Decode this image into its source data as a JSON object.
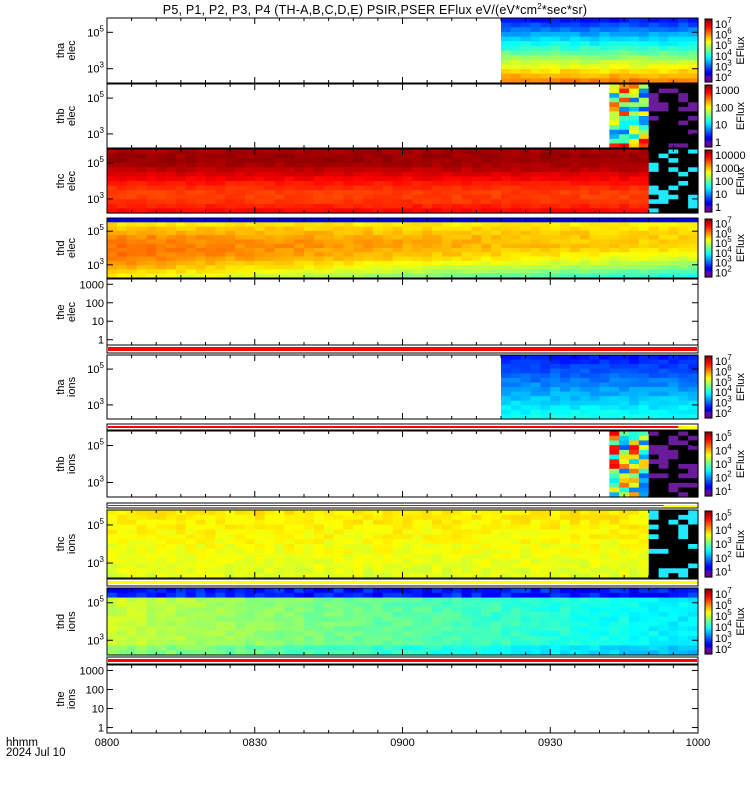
{
  "title": {
    "pre": "P5, P1, P2, P3, P4 (TH-A,B,C,D,E) PSIR,PSER EFlux eV/(eV*cm",
    "sup": "2",
    "post": "*sec*sr)"
  },
  "footer": {
    "label1": "hhmm",
    "label2": "2024 Jul 10"
  },
  "chart_data": {
    "type": "heatmap",
    "title": "P5, P1, P2, P3, P4 (TH-A,B,C,D,E) PSIR,PSER EFlux eV/(eV*cm2*sec*sr)",
    "x_ticks": [
      "0800",
      "0830",
      "0900",
      "0930",
      "1000"
    ],
    "x_range": [
      "08:00",
      "10:00"
    ],
    "panels": [
      {
        "ylabel": [
          "tha",
          "elec"
        ],
        "yticks": [
          "10^5",
          "10^3"
        ],
        "y_log": true,
        "data_start": "09:20",
        "data_end": "10:00",
        "kind": "tha_e",
        "colorbar": {
          "label": "EFlux",
          "ticks": [
            "10^7",
            "10^6",
            "10^5",
            "10^4",
            "10^3",
            "10^2"
          ]
        }
      },
      {
        "ylabel": [
          "thb",
          "elec"
        ],
        "yticks": [
          "10^5",
          "10^3"
        ],
        "y_log": true,
        "data_start": "09:41",
        "data_end": "09:50",
        "kind": "thb_e",
        "colorbar": {
          "label": "EFlux",
          "ticks": [
            "1000",
            "100",
            "10",
            "1"
          ]
        }
      },
      {
        "ylabel": [
          "thc",
          "elec"
        ],
        "yticks": [
          "10^5",
          "10^3"
        ],
        "y_log": true,
        "data_start": "08:00",
        "data_end": "09:50",
        "kind": "thc_e",
        "colorbar": {
          "label": "EFlux",
          "ticks": [
            "10000",
            "1000",
            "100",
            "10",
            "1"
          ]
        }
      },
      {
        "ylabel": [
          "thd",
          "elec"
        ],
        "yticks": [
          "10^5",
          "10^3"
        ],
        "y_log": true,
        "data_start": "08:00",
        "data_end": "10:00",
        "kind": "thd_e",
        "colorbar": {
          "label": "EFlux",
          "ticks": [
            "10^7",
            "10^6",
            "10^5",
            "10^4",
            "10^3",
            "10^2"
          ]
        }
      },
      {
        "ylabel": [
          "the",
          "elec"
        ],
        "yticks": [
          "1000",
          "100",
          "10",
          "1"
        ],
        "y_log": true,
        "kind": "empty"
      },
      {
        "ylabel": [
          "tha",
          "ions"
        ],
        "yticks": [
          "10^5",
          "10^3"
        ],
        "y_log": true,
        "data_start": "09:20",
        "data_end": "10:00",
        "kind": "tha_i",
        "colorbar": {
          "label": "EFlux",
          "ticks": [
            "10^7",
            "10^6",
            "10^5",
            "10^4",
            "10^3",
            "10^2"
          ]
        }
      },
      {
        "ylabel": [
          "thb",
          "ions"
        ],
        "yticks": [
          "10^5",
          "10^3"
        ],
        "y_log": true,
        "data_start": "09:41",
        "data_end": "09:50",
        "kind": "thb_i",
        "colorbar": {
          "label": "EFlux",
          "ticks": [
            "10^5",
            "10^4",
            "10^3",
            "10^2",
            "10^1"
          ]
        }
      },
      {
        "ylabel": [
          "thc",
          "ions"
        ],
        "yticks": [
          "10^5",
          "10^3"
        ],
        "y_log": true,
        "data_start": "08:00",
        "data_end": "09:50",
        "kind": "thc_i",
        "colorbar": {
          "label": "EFlux",
          "ticks": [
            "10^5",
            "10^4",
            "10^3",
            "10^2",
            "10^1"
          ]
        }
      },
      {
        "ylabel": [
          "thd",
          "ions"
        ],
        "yticks": [
          "10^5",
          "10^3"
        ],
        "y_log": true,
        "data_start": "08:00",
        "data_end": "10:00",
        "kind": "thd_i",
        "colorbar": {
          "label": "EFlux",
          "ticks": [
            "10^7",
            "10^6",
            "10^5",
            "10^4",
            "10^3",
            "10^2"
          ]
        }
      },
      {
        "ylabel": [
          "the",
          "ions"
        ],
        "yticks": [
          "1000",
          "100",
          "10",
          "1"
        ],
        "y_log": true,
        "kind": "empty"
      }
    ]
  }
}
